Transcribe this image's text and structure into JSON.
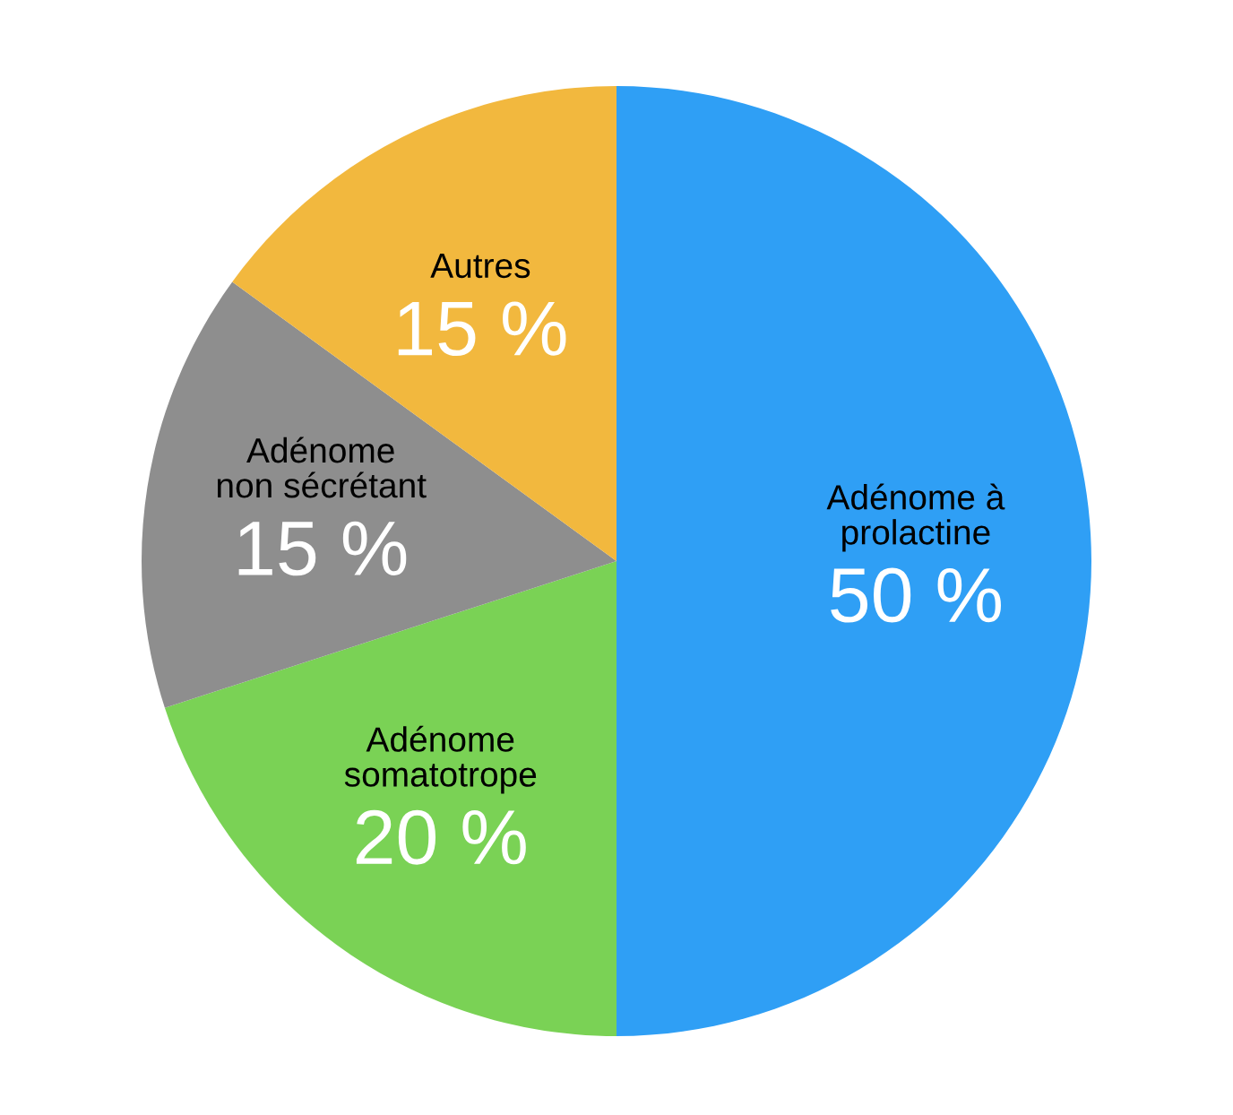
{
  "chart_data": {
    "type": "pie",
    "categories": [
      "Adénome à\nprolactine",
      "Adénome\nsomatotrope",
      "Adénome\nnon sécrétant",
      "Autres"
    ],
    "values": [
      50,
      20,
      15,
      15
    ],
    "value_labels": [
      "50 %",
      "20 %",
      "15 %",
      "15 %"
    ],
    "colors": [
      "#2f9ff5",
      "#7ad255",
      "#8e8e8e",
      "#f2b83e"
    ],
    "legend": false
  }
}
